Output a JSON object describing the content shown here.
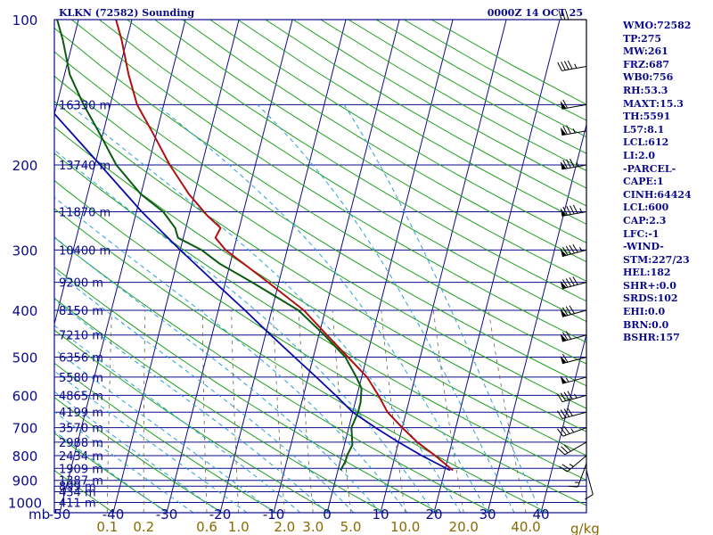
{
  "title": "KLKN (72582) Sounding",
  "timestamp": "0000Z 14 OCT 25",
  "colors": {
    "axis": "#0a0a8c",
    "isotherm": "#0a0a8c",
    "dry_adiabat": "#1fa01f",
    "moist_adiabat": "#2aa0d8",
    "mixing_ratio": "#6a6a40",
    "temperature": "#b01010",
    "dewpoint": "#0a5a10",
    "parcel": "#0a0aa8",
    "wind": "#000000"
  },
  "side_indices": [
    "WMO:72582",
    "TP:275",
    "MW:261",
    "FRZ:687",
    "WB0:756",
    "RH:53.3",
    "MAXT:15.3",
    "TH:5591",
    "L57:8.1",
    "LCL:612",
    "LI:2.0",
    "-PARCEL-",
    "CAPE:1",
    "CINH:64424",
    "LCL:600",
    "CAP:2.3",
    "LFC:-1",
    "-WIND-",
    "STM:227/23",
    "HEL:182",
    "SHR+:0.0",
    "SRDS:102",
    "EHI:0.0",
    "BRN:0.0",
    "BSHR:157"
  ],
  "chart_data": {
    "type": "skew-t",
    "pressure_unit": "mb",
    "temperature_unit": "C",
    "mixing_ratio_unit": "g/kg",
    "pressure_levels": [
      {
        "p": 1000,
        "height": "411 m"
      },
      {
        "p": 950,
        "height": "434 m"
      },
      {
        "p": 925,
        "height": "899 m"
      },
      {
        "p": 900,
        "height": "1387 m"
      },
      {
        "p": 850,
        "height": "1909 m"
      },
      {
        "p": 800,
        "height": "2434 m"
      },
      {
        "p": 750,
        "height": "2988 m"
      },
      {
        "p": 700,
        "height": "3570 m"
      },
      {
        "p": 650,
        "height": "4199 m"
      },
      {
        "p": 600,
        "height": "4865 m"
      },
      {
        "p": 550,
        "height": "5580 m"
      },
      {
        "p": 500,
        "height": "6356 m"
      },
      {
        "p": 450,
        "height": "7210 m"
      },
      {
        "p": 400,
        "height": "8150 m"
      },
      {
        "p": 350,
        "height": "9200 m"
      },
      {
        "p": 300,
        "height": "10400 m"
      },
      {
        "p": 250,
        "height": "11870 m"
      },
      {
        "p": 200,
        "height": "13740 m"
      },
      {
        "p": 150,
        "height": "16330 m"
      }
    ],
    "pressure_tick_labels": [
      "100",
      "200",
      "300",
      "400",
      "500",
      "600",
      "700",
      "800",
      "900",
      "1000"
    ],
    "temperature_ticks": [
      "-50",
      "-40",
      "-30",
      "-20",
      "-10",
      "0",
      "10",
      "20",
      "30",
      "40"
    ],
    "mixing_ratio_ticks": [
      "0.1",
      "0.2",
      "0.6",
      "1.0",
      "2.0",
      "3.0",
      "5.0",
      "10.0",
      "20.0",
      "40.0"
    ],
    "temperature_profile": [
      [
        858,
        21.5
      ],
      [
        800,
        17.5
      ],
      [
        750,
        13.5
      ],
      [
        700,
        10.0
      ],
      [
        650,
        6.5
      ],
      [
        600,
        4.0
      ],
      [
        550,
        1.0
      ],
      [
        500,
        -3.5
      ],
      [
        450,
        -8.5
      ],
      [
        400,
        -14.0
      ],
      [
        350,
        -22.0
      ],
      [
        300,
        -31.5
      ],
      [
        283,
        -34.0
      ],
      [
        270,
        -33.5
      ],
      [
        255,
        -36.5
      ],
      [
        230,
        -41.0
      ],
      [
        200,
        -46.0
      ],
      [
        170,
        -51.0
      ],
      [
        150,
        -55.0
      ],
      [
        130,
        -58.0
      ],
      [
        110,
        -61.0
      ],
      [
        100,
        -63.0
      ]
    ],
    "dewpoint_profile": [
      [
        858,
        0.5
      ],
      [
        820,
        1.0
      ],
      [
        800,
        1.0
      ],
      [
        760,
        1.5
      ],
      [
        700,
        0.5
      ],
      [
        650,
        1.0
      ],
      [
        620,
        1.0
      ],
      [
        580,
        0.5
      ],
      [
        550,
        -1.0
      ],
      [
        500,
        -4.0
      ],
      [
        450,
        -9.0
      ],
      [
        400,
        -15.0
      ],
      [
        350,
        -25.0
      ],
      [
        320,
        -32.0
      ],
      [
        300,
        -36.0
      ],
      [
        283,
        -41.0
      ],
      [
        270,
        -42.0
      ],
      [
        250,
        -45.0
      ],
      [
        230,
        -50.0
      ],
      [
        200,
        -56.0
      ],
      [
        170,
        -61.0
      ],
      [
        150,
        -65.0
      ],
      [
        130,
        -69.0
      ],
      [
        110,
        -72.0
      ],
      [
        100,
        -74.0
      ]
    ],
    "parcel_profile": [
      [
        858,
        21.0
      ],
      [
        800,
        15.0
      ],
      [
        750,
        10.0
      ],
      [
        700,
        5.0
      ],
      [
        650,
        0.0
      ],
      [
        600,
        -4.0
      ],
      [
        550,
        -8.5
      ],
      [
        500,
        -13.5
      ],
      [
        450,
        -19.0
      ],
      [
        400,
        -25.0
      ],
      [
        350,
        -32.0
      ],
      [
        300,
        -40.0
      ],
      [
        250,
        -49.0
      ],
      [
        200,
        -59.0
      ],
      [
        150,
        -72.0
      ],
      [
        130,
        -78.0
      ],
      [
        110,
        -84.0
      ],
      [
        100,
        -88.0
      ]
    ],
    "wind_barbs": [
      {
        "p": 858,
        "dir": 165,
        "spd": 10
      },
      {
        "p": 830,
        "dir": 200,
        "spd": 15
      },
      {
        "p": 800,
        "dir": 230,
        "spd": 25
      },
      {
        "p": 750,
        "dir": 240,
        "spd": 30
      },
      {
        "p": 700,
        "dir": 250,
        "spd": 35
      },
      {
        "p": 650,
        "dir": 255,
        "spd": 40
      },
      {
        "p": 600,
        "dir": 255,
        "spd": 45
      },
      {
        "p": 550,
        "dir": 255,
        "spd": 55
      },
      {
        "p": 500,
        "dir": 255,
        "spd": 60
      },
      {
        "p": 450,
        "dir": 255,
        "spd": 70
      },
      {
        "p": 400,
        "dir": 255,
        "spd": 80
      },
      {
        "p": 350,
        "dir": 255,
        "spd": 90
      },
      {
        "p": 300,
        "dir": 255,
        "spd": 95
      },
      {
        "p": 250,
        "dir": 260,
        "spd": 95
      },
      {
        "p": 200,
        "dir": 260,
        "spd": 85
      },
      {
        "p": 170,
        "dir": 260,
        "spd": 75
      },
      {
        "p": 150,
        "dir": 260,
        "spd": 60
      },
      {
        "p": 125,
        "dir": 260,
        "spd": 45
      },
      {
        "p": 100,
        "dir": 270,
        "spd": 30
      }
    ]
  }
}
